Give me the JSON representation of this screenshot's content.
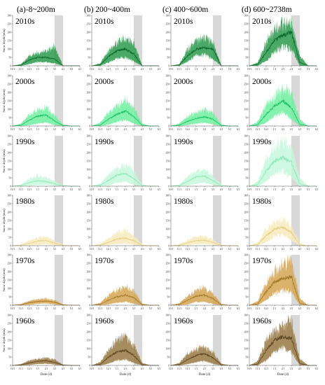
{
  "chart_data": {
    "type": "area",
    "columns": [
      "(a)-8~200m",
      "(b) 200~400m",
      "(c) 400~600m",
      "(d) 600~2738m"
    ],
    "decades": [
      "2010s",
      "2000s",
      "1990s",
      "1980s",
      "1970s",
      "1960s"
    ],
    "colors": {
      "2010s": {
        "band": "#2b9a4d",
        "line": "#0e6a2c"
      },
      "2000s": {
        "band": "#6ef0a0",
        "line": "#22c26a"
      },
      "1990s": {
        "band": "#c6f7dc",
        "line": "#8eeab6"
      },
      "1980s": {
        "band": "#f7eabc",
        "line": "#e6cf82"
      },
      "1970s": {
        "band": "#d4a552",
        "line": "#a67a2c"
      },
      "1960s": {
        "band": "#977842",
        "line": "#5e4722"
      }
    },
    "ylabel": "Snow depth (mm)",
    "xlabel": "Date (d)",
    "ylim": [
      0,
      300
    ],
    "yticks": [
      0,
      50,
      100,
      150,
      200,
      250,
      300
    ],
    "xticks": [
      "10/1",
      "11/1",
      "12/1",
      "1/1",
      "2/1",
      "3/1",
      "4/1",
      "5/1",
      "6/1"
    ],
    "shaded_period": [
      "3/1",
      "4/1"
    ],
    "profile_x": [
      "10/1",
      "11/1",
      "12/1",
      "1/1",
      "2/1",
      "3/1",
      "4/1",
      "5/1",
      "6/1"
    ],
    "panels": {
      "2010s": [
        {
          "max": [
            0,
            10,
            60,
            80,
            85,
            120,
            0,
            0,
            0
          ],
          "mean": [
            0,
            4,
            35,
            50,
            50,
            40,
            0,
            0,
            0
          ],
          "min": [
            0,
            0,
            10,
            22,
            22,
            15,
            0,
            0,
            0
          ]
        },
        {
          "max": [
            0,
            15,
            90,
            140,
            160,
            140,
            0,
            0,
            0
          ],
          "mean": [
            0,
            6,
            55,
            90,
            100,
            70,
            0,
            0,
            0
          ],
          "min": [
            0,
            0,
            20,
            45,
            50,
            25,
            0,
            0,
            0
          ]
        },
        {
          "max": [
            0,
            10,
            100,
            150,
            170,
            140,
            0,
            0,
            0
          ],
          "mean": [
            0,
            5,
            60,
            100,
            110,
            100,
            0,
            0,
            0
          ],
          "min": [
            0,
            0,
            25,
            60,
            65,
            40,
            0,
            0,
            0
          ]
        },
        {
          "max": [
            0,
            20,
            140,
            220,
            250,
            260,
            60,
            0,
            0
          ],
          "mean": [
            0,
            8,
            80,
            150,
            180,
            200,
            20,
            0,
            0
          ],
          "min": [
            0,
            0,
            30,
            80,
            110,
            100,
            0,
            0,
            0
          ]
        }
      ],
      "2000s": [
        {
          "max": [
            0,
            15,
            70,
            100,
            110,
            60,
            10,
            0,
            0
          ],
          "mean": [
            0,
            5,
            35,
            60,
            65,
            30,
            3,
            0,
            0
          ],
          "min": [
            0,
            0,
            5,
            15,
            20,
            5,
            0,
            0,
            0
          ]
        },
        {
          "max": [
            0,
            20,
            80,
            120,
            150,
            110,
            15,
            0,
            0
          ],
          "mean": [
            0,
            6,
            40,
            70,
            90,
            55,
            4,
            0,
            0
          ],
          "min": [
            0,
            0,
            8,
            25,
            35,
            15,
            0,
            0,
            0
          ]
        },
        {
          "max": [
            0,
            15,
            55,
            80,
            100,
            80,
            10,
            0,
            0
          ],
          "mean": [
            0,
            5,
            28,
            45,
            55,
            40,
            3,
            0,
            0
          ],
          "min": [
            0,
            0,
            5,
            15,
            20,
            10,
            0,
            0,
            0
          ]
        },
        {
          "max": [
            0,
            25,
            130,
            180,
            220,
            200,
            40,
            0,
            0
          ],
          "mean": [
            0,
            8,
            70,
            120,
            150,
            110,
            10,
            0,
            0
          ],
          "min": [
            0,
            0,
            20,
            60,
            80,
            40,
            0,
            0,
            0
          ]
        }
      ],
      "1990s": [
        {
          "max": [
            0,
            10,
            45,
            60,
            50,
            30,
            5,
            0,
            0
          ],
          "mean": [
            0,
            4,
            22,
            32,
            28,
            15,
            2,
            0,
            0
          ],
          "min": [
            0,
            0,
            3,
            8,
            8,
            3,
            0,
            0,
            0
          ]
        },
        {
          "max": [
            0,
            15,
            70,
            110,
            130,
            90,
            10,
            0,
            0
          ],
          "mean": [
            0,
            5,
            35,
            65,
            75,
            45,
            3,
            0,
            0
          ],
          "min": [
            0,
            0,
            5,
            20,
            25,
            10,
            0,
            0,
            0
          ]
        },
        {
          "max": [
            0,
            10,
            60,
            90,
            100,
            60,
            8,
            0,
            0
          ],
          "mean": [
            0,
            4,
            30,
            55,
            60,
            35,
            2,
            0,
            0
          ],
          "min": [
            0,
            0,
            5,
            15,
            20,
            8,
            0,
            0,
            0
          ]
        },
        {
          "max": [
            0,
            30,
            160,
            230,
            270,
            240,
            50,
            0,
            0
          ],
          "mean": [
            0,
            10,
            90,
            150,
            170,
            140,
            15,
            0,
            0
          ],
          "min": [
            0,
            0,
            30,
            70,
            90,
            50,
            0,
            0,
            0
          ]
        }
      ],
      "1980s": [
        {
          "max": [
            0,
            8,
            30,
            50,
            55,
            30,
            5,
            0,
            0
          ],
          "mean": [
            0,
            3,
            15,
            28,
            30,
            15,
            2,
            0,
            0
          ],
          "min": [
            0,
            0,
            2,
            5,
            8,
            3,
            0,
            0,
            0
          ]
        },
        {
          "max": [
            0,
            10,
            45,
            80,
            90,
            60,
            8,
            0,
            0
          ],
          "mean": [
            0,
            4,
            20,
            40,
            45,
            30,
            2,
            0,
            0
          ],
          "min": [
            0,
            0,
            3,
            10,
            12,
            5,
            0,
            0,
            0
          ]
        },
        {
          "max": [
            0,
            8,
            35,
            55,
            60,
            35,
            5,
            0,
            0
          ],
          "mean": [
            0,
            3,
            18,
            30,
            32,
            20,
            2,
            0,
            0
          ],
          "min": [
            0,
            0,
            2,
            8,
            10,
            4,
            0,
            0,
            0
          ]
        },
        {
          "max": [
            0,
            20,
            100,
            140,
            160,
            120,
            15,
            0,
            0
          ],
          "mean": [
            0,
            7,
            60,
            100,
            110,
            80,
            5,
            0,
            0
          ],
          "min": [
            0,
            0,
            20,
            55,
            65,
            30,
            0,
            0,
            0
          ]
        }
      ],
      "1970s": [
        {
          "max": [
            0,
            8,
            25,
            35,
            40,
            30,
            5,
            0,
            0
          ],
          "mean": [
            0,
            3,
            15,
            22,
            25,
            18,
            2,
            0,
            0
          ],
          "min": [
            0,
            0,
            3,
            8,
            10,
            5,
            0,
            0,
            0
          ]
        },
        {
          "max": [
            0,
            15,
            60,
            90,
            110,
            90,
            10,
            0,
            0
          ],
          "mean": [
            0,
            5,
            30,
            50,
            60,
            45,
            3,
            0,
            0
          ],
          "min": [
            0,
            0,
            5,
            15,
            20,
            10,
            0,
            0,
            0
          ]
        },
        {
          "max": [
            0,
            12,
            55,
            90,
            100,
            70,
            8,
            0,
            0
          ],
          "mean": [
            0,
            4,
            30,
            55,
            60,
            40,
            2,
            0,
            0
          ],
          "min": [
            0,
            0,
            5,
            20,
            20,
            8,
            0,
            0,
            0
          ]
        },
        {
          "max": [
            0,
            25,
            130,
            200,
            240,
            260,
            40,
            0,
            0
          ],
          "mean": [
            0,
            8,
            80,
            140,
            160,
            170,
            12,
            0,
            0
          ],
          "min": [
            0,
            0,
            30,
            70,
            90,
            80,
            0,
            0,
            0
          ]
        }
      ],
      "1960s": [
        {
          "max": [
            0,
            8,
            30,
            40,
            45,
            35,
            5,
            0,
            0
          ],
          "mean": [
            0,
            3,
            15,
            25,
            28,
            18,
            2,
            0,
            0
          ],
          "min": [
            0,
            0,
            3,
            8,
            10,
            5,
            0,
            0,
            0
          ]
        },
        {
          "max": [
            0,
            20,
            90,
            150,
            170,
            120,
            15,
            0,
            0
          ],
          "mean": [
            0,
            6,
            50,
            80,
            90,
            60,
            4,
            0,
            0
          ],
          "min": [
            0,
            0,
            10,
            30,
            35,
            15,
            0,
            0,
            0
          ]
        },
        {
          "max": [
            0,
            15,
            70,
            100,
            110,
            80,
            10,
            0,
            0
          ],
          "mean": [
            0,
            5,
            35,
            60,
            70,
            45,
            3,
            0,
            0
          ],
          "min": [
            0,
            0,
            8,
            20,
            25,
            10,
            0,
            0,
            0
          ]
        },
        {
          "max": [
            0,
            25,
            150,
            210,
            240,
            260,
            40,
            0,
            0
          ],
          "mean": [
            0,
            8,
            90,
            150,
            170,
            160,
            12,
            0,
            0
          ],
          "min": [
            0,
            0,
            30,
            80,
            100,
            80,
            0,
            0,
            0
          ]
        }
      ]
    }
  }
}
